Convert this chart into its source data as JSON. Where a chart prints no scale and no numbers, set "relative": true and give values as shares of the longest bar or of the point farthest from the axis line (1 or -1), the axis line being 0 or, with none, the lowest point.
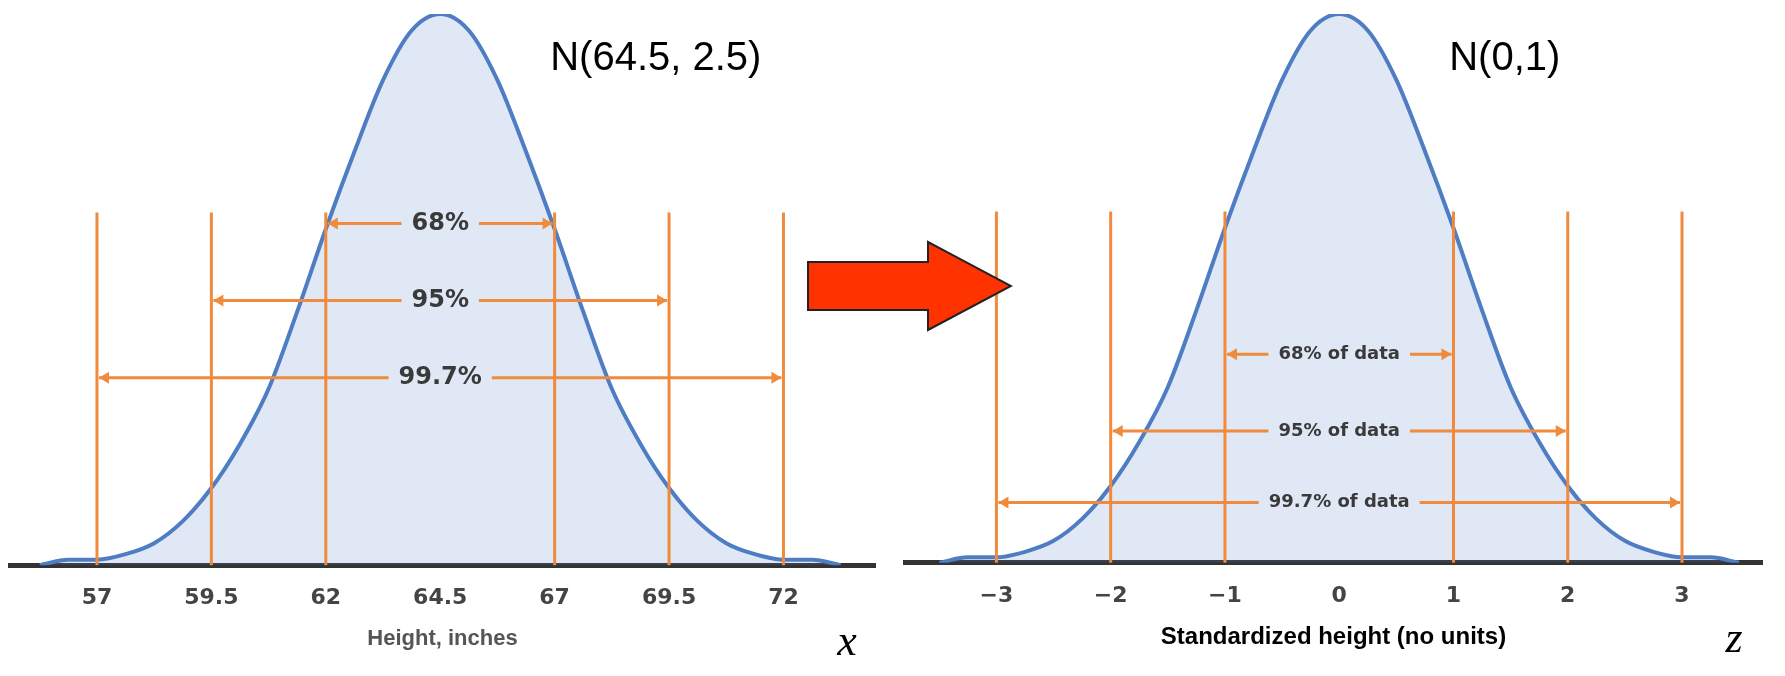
{
  "chart_data": [
    {
      "type": "area",
      "relative": true,
      "xlabel": "Height, inches",
      "color": "#4f7dc4",
      "x": [
        55.75,
        56.375,
        57,
        57.625,
        58.25,
        58.875,
        59.5,
        60.125,
        60.75,
        61.375,
        62,
        62.625,
        63.25,
        63.875,
        64.5,
        65.125,
        65.75,
        66.375,
        67,
        67.625,
        68.25,
        68.875,
        69.5,
        70.125,
        70.75,
        71.375,
        72,
        72.625,
        73.25
      ],
      "values": [
        0,
        0.01,
        0.01,
        0.02,
        0.04,
        0.08,
        0.14,
        0.22,
        0.32,
        0.46,
        0.61,
        0.75,
        0.88,
        0.97,
        1,
        0.97,
        0.88,
        0.75,
        0.61,
        0.46,
        0.32,
        0.22,
        0.14,
        0.08,
        0.04,
        0.02,
        0.01,
        0.01,
        0
      ],
      "xlim": [
        55.1,
        74
      ],
      "xticks": [
        57,
        59.5,
        62,
        64.5,
        67,
        69.5,
        72
      ],
      "ref_lines": [
        {
          "axis": "x",
          "value": 57,
          "color": "#f08a3c"
        },
        {
          "axis": "x",
          "value": 59.5,
          "color": "#f08a3c"
        },
        {
          "axis": "x",
          "value": 62,
          "color": "#f08a3c"
        },
        {
          "axis": "x",
          "value": 67,
          "color": "#f08a3c"
        },
        {
          "axis": "x",
          "value": 69.5,
          "color": "#f08a3c"
        },
        {
          "axis": "x",
          "value": 72,
          "color": "#f08a3c"
        }
      ],
      "annotations": [
        "N(64.5, 2.5)",
        "x",
        "68%",
        "95%",
        "99.7%"
      ]
    },
    {
      "type": "area",
      "relative": true,
      "xlabel": "Standardized height (no units)",
      "color": "#4f7dc4",
      "x": [
        -3.5,
        -3.25,
        -3,
        -2.75,
        -2.5,
        -2.25,
        -2,
        -1.75,
        -1.5,
        -1.25,
        -1,
        -0.75,
        -0.5,
        -0.25,
        0,
        0.25,
        0.5,
        0.75,
        1,
        1.25,
        1.5,
        1.75,
        2,
        2.25,
        2.5,
        2.75,
        3,
        3.25,
        3.5
      ],
      "values": [
        0,
        0.01,
        0.01,
        0.02,
        0.04,
        0.08,
        0.14,
        0.22,
        0.32,
        0.46,
        0.61,
        0.75,
        0.88,
        0.97,
        1,
        0.97,
        0.88,
        0.75,
        0.61,
        0.46,
        0.32,
        0.22,
        0.14,
        0.08,
        0.04,
        0.02,
        0.01,
        0.01,
        0
      ],
      "xlim": [
        -3.8,
        3.7
      ],
      "xticks": [
        {
          "value": -3,
          "label": "−3"
        },
        {
          "value": -2,
          "label": "−2"
        },
        {
          "value": -1,
          "label": "−1"
        },
        0,
        1,
        2,
        3
      ],
      "ref_lines": [
        {
          "axis": "x",
          "value": -3,
          "color": "#f08a3c"
        },
        {
          "axis": "x",
          "value": -2,
          "color": "#f08a3c"
        },
        {
          "axis": "x",
          "value": -1,
          "color": "#f08a3c"
        },
        {
          "axis": "x",
          "value": 1,
          "color": "#f08a3c"
        },
        {
          "axis": "x",
          "value": 2,
          "color": "#f08a3c"
        },
        {
          "axis": "x",
          "value": 3,
          "color": "#f08a3c"
        }
      ],
      "annotations": [
        "N(0,1)",
        "z",
        "68% of data",
        "95% of data",
        "99.7% of data"
      ]
    }
  ]
}
